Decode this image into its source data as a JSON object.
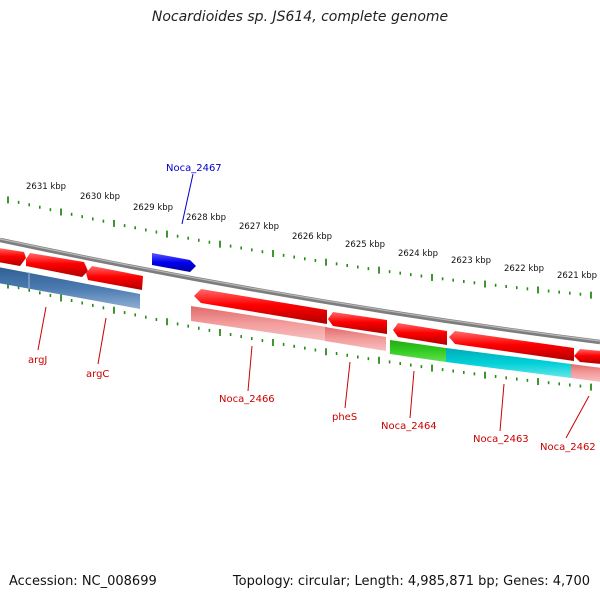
{
  "title": "Nocardioides sp. JS614, complete genome",
  "footer": {
    "accession": "Accession: NC_008699",
    "summary": "Topology: circular; Length: 4,985,871 bp; Genes: 4,700"
  },
  "colors": {
    "backbone": "#8a8a8a",
    "tick": "#2a8a1a",
    "forward_feature": "#ff0000",
    "reverse_feature": "#f28a8a",
    "reverse_operon": "#4a7ab0",
    "highlight_feature": "#0000ee",
    "green_gene": "#33cc22",
    "cyan_gene": "#00d0d8",
    "label_red": "#cc0000",
    "label_blue": "#0000cc"
  },
  "kbp_labels": [
    "2631 kbp",
    "2630 kbp",
    "2629 kbp",
    "2628 kbp",
    "2627 kbp",
    "2626 kbp",
    "2625 kbp",
    "2624 kbp",
    "2623 kbp",
    "2622 kbp",
    "2621 kbp"
  ],
  "gene_labels": {
    "noca_2467": "Noca_2467",
    "argJ": "argJ",
    "argC": "argC",
    "noca_2466": "Noca_2466",
    "pheS": "pheS",
    "noca_2464": "Noca_2464",
    "noca_2463": "Noca_2463",
    "noca_2462": "Noca_2462"
  }
}
